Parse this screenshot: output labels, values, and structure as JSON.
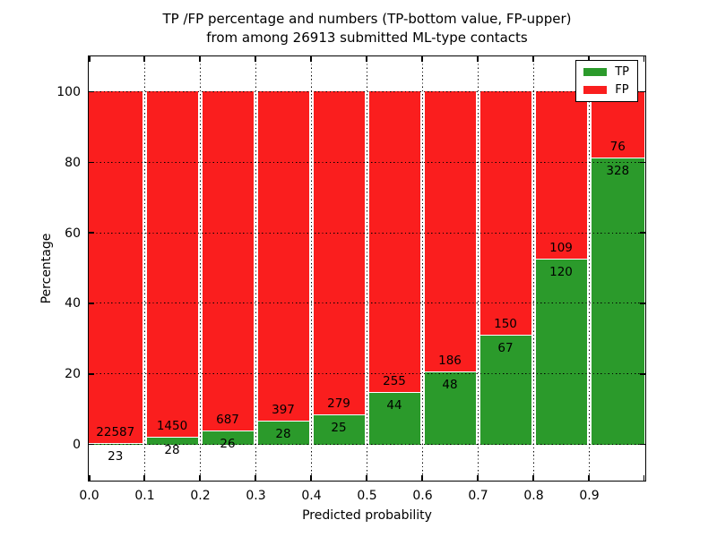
{
  "title": {
    "line1": "TP /FP percentage and numbers (TP-bottom value, FP-upper)",
    "line2": "from among 26913 submitted ML-type contacts"
  },
  "axes": {
    "xlabel": "Predicted probability",
    "ylabel": "Percentage"
  },
  "legend": {
    "position": "upper right",
    "entries": [
      {
        "label": "TP",
        "color": "#2b9a2b"
      },
      {
        "label": "FP",
        "color": "#fa1e1e"
      }
    ]
  },
  "chart_data": {
    "type": "bar",
    "stacked": true,
    "normalized": "each bar scaled to 100%",
    "title": "TP /FP percentage and numbers (TP-bottom value, FP-upper) from among 26913 submitted ML-type contacts",
    "xlabel": "Predicted probability",
    "ylabel": "Percentage",
    "total_contacts": 26913,
    "categories": [
      "0.0",
      "0.1",
      "0.2",
      "0.3",
      "0.4",
      "0.5",
      "0.6",
      "0.7",
      "0.8",
      "0.9"
    ],
    "bin_width": 0.1,
    "series": [
      {
        "name": "TP",
        "color": "#2b9a2b",
        "counts": [
          23,
          28,
          26,
          28,
          25,
          44,
          48,
          67,
          120,
          328
        ]
      },
      {
        "name": "FP",
        "color": "#fa1e1e",
        "counts": [
          22587,
          1450,
          687,
          397,
          279,
          255,
          186,
          150,
          109,
          76
        ]
      }
    ],
    "tp_percent_of_bin": [
      0.1,
      1.9,
      3.6,
      6.6,
      8.2,
      14.7,
      20.5,
      30.9,
      52.4,
      81.2
    ],
    "xlim": [
      0,
      1.0
    ],
    "ylim": [
      -10,
      110
    ],
    "yticks": [
      0,
      20,
      40,
      60,
      80,
      100
    ],
    "ytick_labels": [
      "0",
      "20",
      "40",
      "60",
      "80",
      "100"
    ],
    "xtick_labels": [
      "0.0",
      "0.1",
      "0.2",
      "0.3",
      "0.4",
      "0.5",
      "0.6",
      "0.7",
      "0.8",
      "0.9"
    ],
    "grid": "dotted black, horizontal lines drawn above bars, vertical lines visible in gaps",
    "legend_position": "upper right"
  }
}
